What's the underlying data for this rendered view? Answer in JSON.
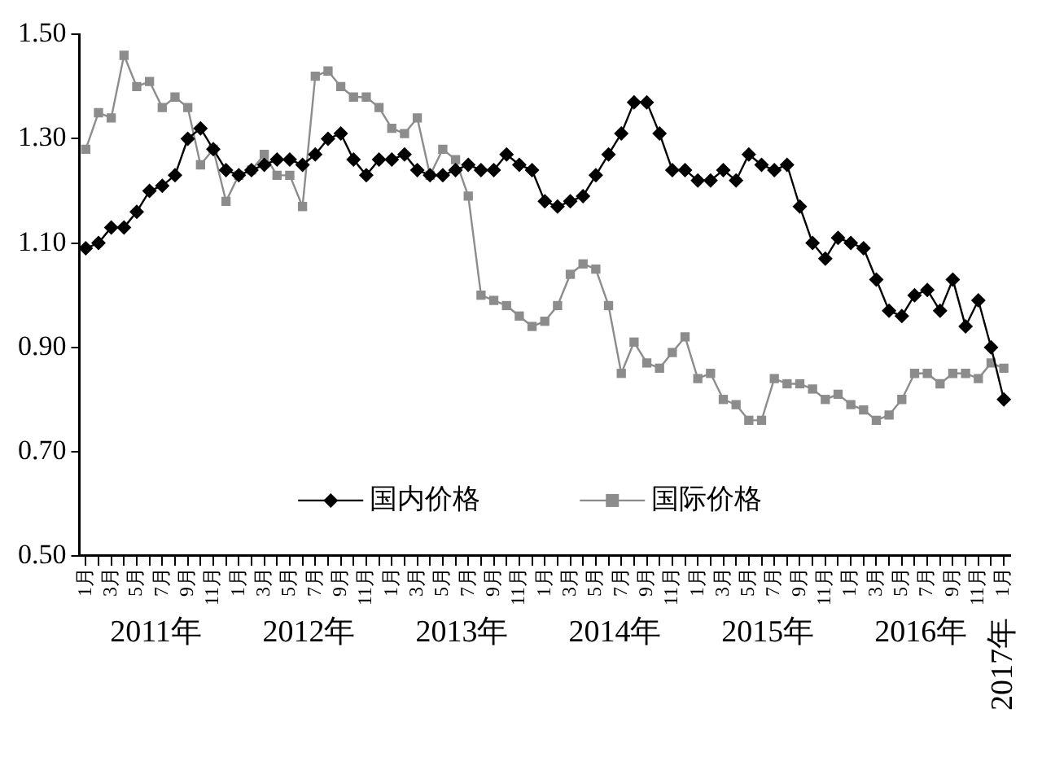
{
  "chart_data": {
    "type": "line",
    "categories": [
      "1月",
      null,
      "3月",
      null,
      "5月",
      null,
      "7月",
      null,
      "9月",
      null,
      "11月",
      null,
      "1月",
      null,
      "3月",
      null,
      "5月",
      null,
      "7月",
      null,
      "9月",
      null,
      "11月",
      null,
      "1月",
      null,
      "3月",
      null,
      "5月",
      null,
      "7月",
      null,
      "9月",
      null,
      "11月",
      null,
      "1月",
      null,
      "3月",
      null,
      "5月",
      null,
      "7月",
      null,
      "9月",
      null,
      "11月",
      null,
      "1月",
      null,
      "3月",
      null,
      "5月",
      null,
      "7月",
      null,
      "9月",
      null,
      "11月",
      null,
      "1月",
      null,
      "3月",
      null,
      "5月",
      null,
      "7月",
      null,
      "9月",
      null,
      "11月",
      null,
      "1月"
    ],
    "series": [
      {
        "name": "国内价格",
        "color": "#000000",
        "marker": "diamond",
        "values": [
          1.09,
          1.1,
          1.13,
          1.13,
          1.16,
          1.2,
          1.21,
          1.23,
          1.3,
          1.32,
          1.28,
          1.24,
          1.23,
          1.24,
          1.25,
          1.26,
          1.26,
          1.25,
          1.27,
          1.3,
          1.31,
          1.26,
          1.23,
          1.26,
          1.26,
          1.27,
          1.24,
          1.23,
          1.23,
          1.24,
          1.25,
          1.24,
          1.24,
          1.27,
          1.25,
          1.24,
          1.18,
          1.17,
          1.18,
          1.19,
          1.23,
          1.27,
          1.31,
          1.37,
          1.37,
          1.31,
          1.24,
          1.24,
          1.22,
          1.22,
          1.24,
          1.22,
          1.27,
          1.25,
          1.24,
          1.25,
          1.17,
          1.1,
          1.07,
          1.11,
          1.1,
          1.09,
          1.03,
          0.97,
          0.96,
          1.0,
          1.01,
          0.97,
          1.03,
          0.94,
          0.99,
          0.9,
          0.8
        ]
      },
      {
        "name": "国际价格",
        "color": "#8c8c8c",
        "marker": "square",
        "values": [
          1.28,
          1.35,
          1.34,
          1.46,
          1.4,
          1.41,
          1.36,
          1.38,
          1.36,
          1.25,
          1.28,
          1.18,
          1.23,
          1.24,
          1.27,
          1.23,
          1.23,
          1.17,
          1.42,
          1.43,
          1.4,
          1.38,
          1.38,
          1.36,
          1.32,
          1.31,
          1.34,
          1.23,
          1.28,
          1.26,
          1.19,
          1.0,
          0.99,
          0.98,
          0.96,
          0.94,
          0.95,
          0.98,
          1.04,
          1.06,
          1.05,
          0.98,
          0.85,
          0.91,
          0.87,
          0.86,
          0.89,
          0.92,
          0.84,
          0.85,
          0.8,
          0.79,
          0.76,
          0.76,
          0.84,
          0.83,
          0.83,
          0.82,
          0.8,
          0.81,
          0.79,
          0.78,
          0.76,
          0.77,
          0.8,
          0.85,
          0.85,
          0.83,
          0.85,
          0.85,
          0.84,
          0.87,
          0.86
        ]
      }
    ],
    "ylim": [
      0.5,
      1.5
    ],
    "yticks": [
      {
        "value": 0.5,
        "label": "0.50"
      },
      {
        "value": 0.7,
        "label": "0.70"
      },
      {
        "value": 0.9,
        "label": "0.90"
      },
      {
        "value": 1.1,
        "label": "1.10"
      },
      {
        "value": 1.3,
        "label": "1.30"
      },
      {
        "value": 1.5,
        "label": "1.50"
      }
    ],
    "annotations": [
      "2011年",
      "2012年",
      "2013年",
      "2014年",
      "2015年",
      "2016年",
      "2017年"
    ],
    "legend": "bottom",
    "grid": false,
    "line_style": "solid"
  }
}
